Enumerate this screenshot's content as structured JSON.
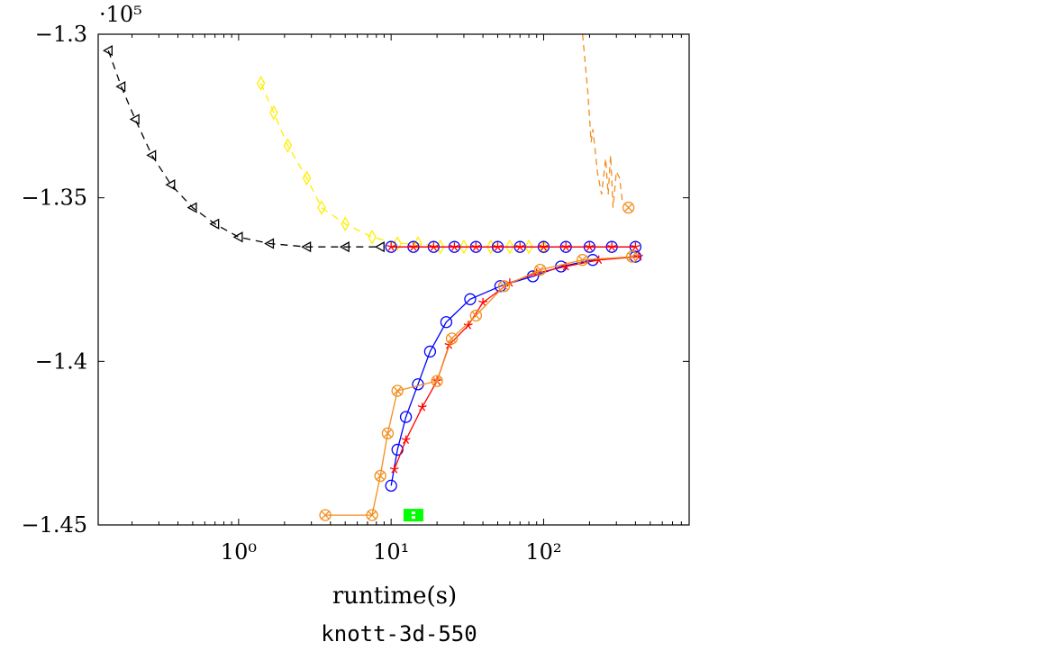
{
  "chart_data": {
    "type": "line",
    "title": "knott-3d-550",
    "xlabel": "runtime(s)",
    "ylabel": "",
    "y_multiplier_label": "·10⁵",
    "x_scale": "log",
    "xlim": [
      0.12,
      900
    ],
    "ylim": [
      -1.45,
      -1.3
    ],
    "y_ticks": [
      -1.45,
      -1.4,
      -1.35,
      -1.3
    ],
    "y_tick_labels": [
      "−1.45",
      "−1.4",
      "−1.35",
      "−1.3"
    ],
    "x_ticks": [
      1,
      10,
      100
    ],
    "x_tick_labels": [
      "10⁰",
      "10¹",
      "10²"
    ],
    "grid": false,
    "series": [
      {
        "color": "#000000",
        "dash": "8,6",
        "marker": "triangle-left",
        "x": [
          0.14,
          0.17,
          0.21,
          0.27,
          0.36,
          0.5,
          0.7,
          1.0,
          1.6,
          2.8,
          5.0,
          8.5
        ],
        "y": [
          -1.305,
          -1.316,
          -1.326,
          -1.337,
          -1.346,
          -1.353,
          -1.358,
          -1.362,
          -1.364,
          -1.365,
          -1.365,
          -1.365
        ]
      },
      {
        "color": "#ffee00",
        "dash": "8,6",
        "marker": "diamond",
        "x": [
          1.4,
          1.7,
          2.1,
          2.8,
          3.5,
          5.0,
          7.5,
          11,
          15,
          21,
          30,
          45,
          60,
          80,
          100
        ],
        "y": [
          -1.315,
          -1.324,
          -1.334,
          -1.344,
          -1.353,
          -1.358,
          -1.362,
          -1.364,
          -1.364,
          -1.365,
          -1.365,
          -1.365,
          -1.365,
          -1.365,
          -1.365
        ]
      },
      {
        "color": "#0000ff",
        "dash": "",
        "marker": "circle",
        "x": [
          10,
          14,
          19,
          26,
          36,
          50,
          70,
          100,
          140,
          200,
          280,
          400
        ],
        "y": [
          -1.365,
          -1.365,
          -1.365,
          -1.365,
          -1.365,
          -1.365,
          -1.365,
          -1.365,
          -1.365,
          -1.365,
          -1.365,
          -1.365
        ]
      },
      {
        "color": "#ff0000",
        "dash": "",
        "marker": "star",
        "x": [
          10,
          14,
          19,
          26,
          36,
          50,
          70,
          100,
          140,
          200,
          280,
          400
        ],
        "y": [
          -1.365,
          -1.365,
          -1.365,
          -1.365,
          -1.365,
          -1.365,
          -1.365,
          -1.365,
          -1.365,
          -1.365,
          -1.365,
          -1.365
        ]
      },
      {
        "color": "#0000ff",
        "dash": "",
        "marker": "circle",
        "x": [
          10,
          11,
          12.5,
          15,
          18,
          23,
          33,
          52,
          85,
          130,
          210,
          400
        ],
        "y": [
          -1.438,
          -1.427,
          -1.417,
          -1.407,
          -1.397,
          -1.388,
          -1.381,
          -1.377,
          -1.374,
          -1.371,
          -1.369,
          -1.368
        ]
      },
      {
        "color": "#ff0000",
        "dash": "",
        "marker": "star",
        "x": [
          10.5,
          12.5,
          16,
          20,
          24,
          32,
          40,
          60,
          90,
          140,
          230,
          420
        ],
        "y": [
          -1.433,
          -1.424,
          -1.414,
          -1.406,
          -1.395,
          -1.389,
          -1.382,
          -1.376,
          -1.373,
          -1.371,
          -1.369,
          -1.368
        ]
      },
      {
        "color": "#f28e1e",
        "dash": "",
        "marker": "circle-x",
        "x": [
          3.7,
          7.5,
          8.5,
          9.5,
          11,
          20,
          25,
          36,
          55,
          95,
          180,
          380
        ],
        "y": [
          -1.447,
          -1.447,
          -1.435,
          -1.422,
          -1.409,
          -1.406,
          -1.393,
          -1.386,
          -1.377,
          -1.372,
          -1.369,
          -1.368
        ]
      },
      {
        "color": "#f28e1e",
        "dash": "7,5",
        "marker": "none",
        "x": [
          180,
          195,
          205,
          210,
          215,
          225,
          240,
          255,
          265,
          275,
          285,
          300,
          315,
          330
        ],
        "y": [
          -1.3,
          -1.318,
          -1.333,
          -1.329,
          -1.333,
          -1.342,
          -1.349,
          -1.338,
          -1.349,
          -1.337,
          -1.353,
          -1.342,
          -1.344,
          -1.352
        ]
      },
      {
        "color": "#f28e1e",
        "dash": "",
        "marker": "circle-x",
        "x": [
          360
        ],
        "y": [
          -1.353
        ]
      },
      {
        "color": "#00ff00",
        "dash": "",
        "marker": "square-box",
        "x": [
          14
        ],
        "y": [
          -1.447
        ]
      }
    ]
  }
}
